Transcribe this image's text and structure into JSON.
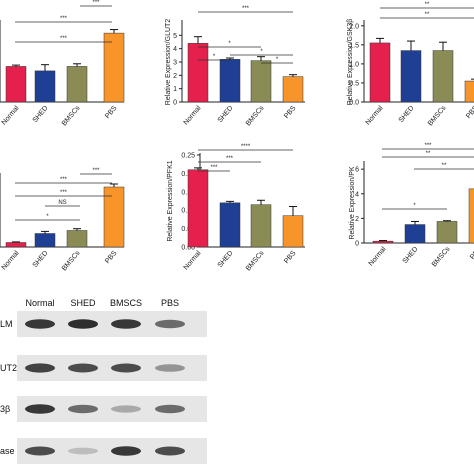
{
  "chart_data": [
    {
      "type": "bar",
      "ylabel": "",
      "categories": [
        "Normal",
        "SHED",
        "BMSCs",
        "PBS"
      ],
      "values": [
        0.8,
        0.7,
        0.8,
        1.55
      ],
      "errors": [
        0.03,
        0.14,
        0.06,
        0.08
      ],
      "ylim": [
        0,
        1.8
      ],
      "sig_labels": [
        "***",
        "***",
        "***"
      ]
    },
    {
      "type": "bar",
      "ylabel": "Relative Expression/GLUT2",
      "yticks": [
        "0",
        "1",
        "2",
        "3",
        "4",
        "5"
      ],
      "categories": [
        "Normal",
        "SHED",
        "BMSCs",
        "PBS"
      ],
      "values": [
        4.4,
        3.2,
        3.1,
        1.9
      ],
      "errors": [
        0.5,
        0.1,
        0.3,
        0.15
      ],
      "ylim": [
        0,
        6
      ],
      "sig_labels": [
        "*",
        "*",
        "*",
        "*",
        "***"
      ]
    },
    {
      "type": "bar",
      "ylabel": "Relative Expression/GSK3β",
      "yticks": [
        "0.0",
        "0.5",
        "1.0",
        "1.5",
        "2.0"
      ],
      "categories": [
        "Normal",
        "SHED",
        "BMSCs",
        "PBS"
      ],
      "values": [
        1.55,
        1.35,
        1.35,
        0.55
      ],
      "errors": [
        0.12,
        0.25,
        0.22,
        0.05
      ],
      "ylim": [
        0,
        2.1
      ],
      "sig_labels": [
        "**",
        "**"
      ]
    },
    {
      "type": "bar",
      "ylabel": "",
      "categories": [
        "Normal",
        "SHED",
        "BMSCs",
        "PBS"
      ],
      "values": [
        0.15,
        0.45,
        0.55,
        2.0
      ],
      "errors": [
        0.02,
        0.07,
        0.06,
        0.1
      ],
      "ylim": [
        0,
        2.4
      ],
      "sig_labels": [
        "*",
        "NS",
        "***",
        "***",
        "***"
      ]
    },
    {
      "type": "bar",
      "ylabel": "Relative Expression/PFK1",
      "yticks": [
        "0.00",
        "0.05",
        "0.10",
        "0.15",
        "0.20",
        "0.25"
      ],
      "categories": [
        "Normal",
        "SHED",
        "BMSCs",
        "PBS"
      ],
      "values": [
        0.21,
        0.12,
        0.115,
        0.085
      ],
      "errors": [
        0.005,
        0.004,
        0.012,
        0.025
      ],
      "ylim": [
        0,
        0.25
      ],
      "sig_labels": [
        "***",
        "***",
        "****"
      ]
    },
    {
      "type": "bar",
      "ylabel": "Relative Expression/PK",
      "yticks": [
        "0",
        "2",
        "4",
        "6"
      ],
      "categories": [
        "Normal",
        "SHED",
        "BMSCs",
        "PBS"
      ],
      "values": [
        0.15,
        1.5,
        1.75,
        4.4
      ],
      "errors": [
        0.05,
        0.25,
        0.06,
        0.2
      ],
      "ylim": [
        0,
        6.5
      ],
      "sig_labels": [
        "*",
        "**",
        "**",
        "***"
      ]
    }
  ],
  "blot": {
    "columns": [
      "Normal",
      "SHED",
      "BMSCS",
      "PBS"
    ],
    "rows": [
      "LM",
      "UT2",
      "3β",
      "ase"
    ],
    "intensities": [
      [
        0.85,
        0.9,
        0.85,
        0.6
      ],
      [
        0.8,
        0.75,
        0.75,
        0.4
      ],
      [
        0.85,
        0.6,
        0.3,
        0.6
      ],
      [
        0.75,
        0.2,
        0.85,
        0.75
      ]
    ]
  },
  "colors": {
    "normal": "#e5204d",
    "shed": "#1f3f94",
    "bmscs": "#8b8c55",
    "pbs": "#f7942a",
    "axis": "#222222"
  }
}
